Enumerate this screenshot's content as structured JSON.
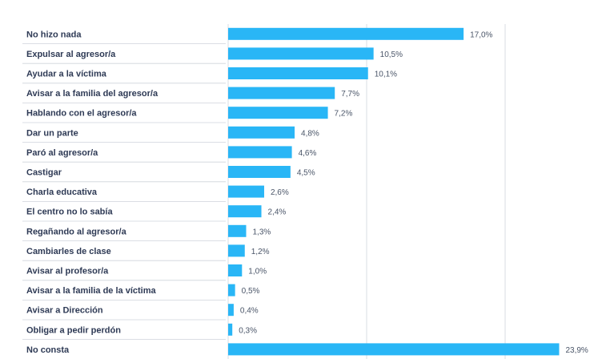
{
  "chart_data": {
    "type": "bar",
    "orientation": "horizontal",
    "categories": [
      "No hizo nada",
      "Expulsar al agresor/a",
      "Ayudar a la víctima",
      "Avisar a la familia del agresor/a",
      "Hablando con el agresor/a",
      "Dar un parte",
      "Paró al agresor/a",
      "Castigar",
      "Charla educativa",
      "El centro no lo sabía",
      "Regañando al agresor/a",
      "Cambiarles de clase",
      "Avisar al profesor/a",
      "Avisar a la familia de la víctima",
      "Avisar a Dirección",
      "Obligar a pedir perdón",
      "No consta"
    ],
    "values": [
      17.0,
      10.5,
      10.1,
      7.7,
      7.2,
      4.8,
      4.6,
      4.5,
      2.6,
      2.4,
      1.3,
      1.2,
      1.0,
      0.5,
      0.4,
      0.3,
      23.9
    ],
    "value_labels": [
      "17,0%",
      "10,5%",
      "10,1%",
      "7,7%",
      "7,2%",
      "4,8%",
      "4,6%",
      "4,5%",
      "2,6%",
      "2,4%",
      "1,3%",
      "1,2%",
      "1,0%",
      "0,5%",
      "0,4%",
      "0,3%",
      "23,9%"
    ],
    "xlim": [
      0,
      25
    ],
    "gridlines_x": [
      10,
      20
    ],
    "grid": true,
    "legend": "none",
    "bar_color": "#29b6f6",
    "grid_color": "#d9dde3",
    "separator_color": "#cfd4db"
  }
}
